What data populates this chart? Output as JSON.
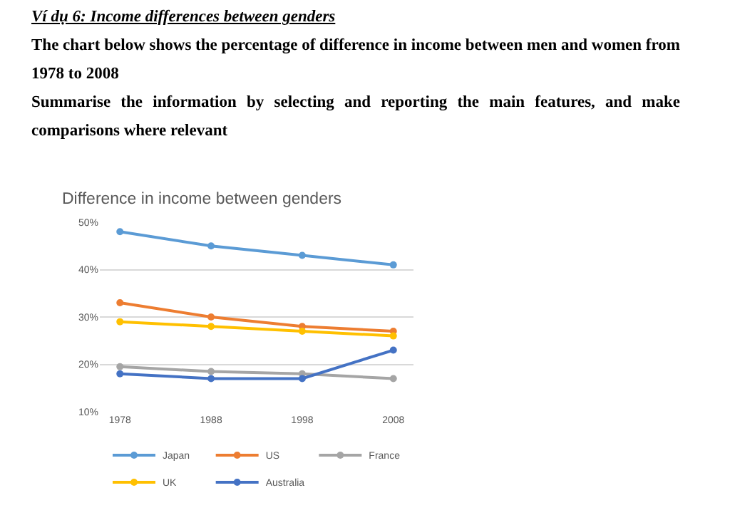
{
  "chart_data": {
    "type": "line",
    "title": "Difference in income between genders",
    "annotations": [
      "Ví dụ 6: Income differences between genders",
      "The chart below shows the percentage of difference in income between men and women from 1978 to 2008",
      "Summarise the information by selecting and reporting the main features, and make comparisons where relevant"
    ],
    "categories": [
      "1978",
      "1988",
      "1998",
      "2008"
    ],
    "series": [
      {
        "name": "Japan",
        "color": "#5b9bd5",
        "values": [
          48,
          45,
          43,
          41
        ]
      },
      {
        "name": "US",
        "color": "#ed7d31",
        "values": [
          33,
          30,
          28,
          27
        ]
      },
      {
        "name": "France",
        "color": "#a5a5a5",
        "values": [
          19.5,
          18.5,
          18,
          17
        ]
      },
      {
        "name": "UK",
        "color": "#ffc000",
        "values": [
          29,
          28,
          27,
          26
        ]
      },
      {
        "name": "Australia",
        "color": "#4472c4",
        "values": [
          18,
          17,
          17,
          23
        ]
      }
    ],
    "ylim": [
      10,
      50
    ],
    "yticks": [
      {
        "value": 10,
        "label": "10%"
      },
      {
        "value": 20,
        "label": "20%"
      },
      {
        "value": 30,
        "label": "30%"
      },
      {
        "value": 40,
        "label": "40%"
      },
      {
        "value": 50,
        "label": "50%"
      }
    ],
    "grid": "y",
    "legend": "bottom",
    "marker": "circle",
    "line_style": "solid"
  }
}
